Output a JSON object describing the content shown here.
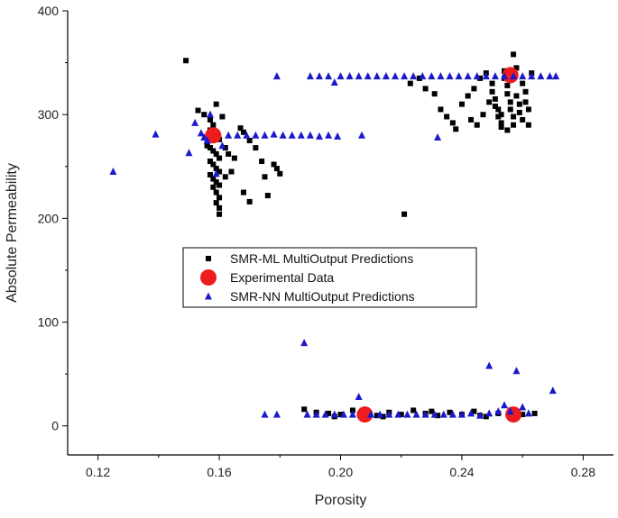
{
  "chart_data": {
    "type": "scatter",
    "title": "",
    "xlabel": "Porosity",
    "ylabel": "Absolute Permeability",
    "xlim": [
      0.11,
      0.29
    ],
    "ylim": [
      -28,
      400
    ],
    "xticks": [
      0.12,
      0.16,
      0.2,
      0.24,
      0.28
    ],
    "xtick_labels": [
      "0.12",
      "0.16",
      "0.20",
      "0.24",
      "0.28"
    ],
    "yticks": [
      0,
      100,
      200,
      300,
      400
    ],
    "ytick_labels": [
      "0",
      "100",
      "200",
      "300",
      "400"
    ],
    "grid": false,
    "legend_position": "center",
    "series": [
      {
        "name": "SMR-ML MultiOutput Predictions",
        "marker": "square",
        "color": "#000000",
        "points": [
          [
            0.149,
            352
          ],
          [
            0.153,
            304
          ],
          [
            0.155,
            300
          ],
          [
            0.157,
            295
          ],
          [
            0.158,
            290
          ],
          [
            0.159,
            310
          ],
          [
            0.157,
            285
          ],
          [
            0.158,
            282
          ],
          [
            0.159,
            278
          ],
          [
            0.16,
            276
          ],
          [
            0.156,
            272
          ],
          [
            0.157,
            268
          ],
          [
            0.158,
            265
          ],
          [
            0.159,
            262
          ],
          [
            0.16,
            258
          ],
          [
            0.157,
            255
          ],
          [
            0.158,
            252
          ],
          [
            0.159,
            248
          ],
          [
            0.16,
            245
          ],
          [
            0.157,
            242
          ],
          [
            0.158,
            238
          ],
          [
            0.159,
            235
          ],
          [
            0.158,
            230
          ],
          [
            0.159,
            225
          ],
          [
            0.16,
            220
          ],
          [
            0.159,
            215
          ],
          [
            0.16,
            210
          ],
          [
            0.16,
            204
          ],
          [
            0.162,
            268
          ],
          [
            0.163,
            262
          ],
          [
            0.165,
            258
          ],
          [
            0.167,
            287
          ],
          [
            0.168,
            283
          ],
          [
            0.17,
            275
          ],
          [
            0.172,
            268
          ],
          [
            0.174,
            255
          ],
          [
            0.175,
            240
          ],
          [
            0.176,
            222
          ],
          [
            0.178,
            252
          ],
          [
            0.179,
            248
          ],
          [
            0.18,
            243
          ],
          [
            0.17,
            216
          ],
          [
            0.168,
            225
          ],
          [
            0.164,
            245
          ],
          [
            0.161,
            298
          ],
          [
            0.156,
            270
          ],
          [
            0.162,
            240
          ],
          [
            0.16,
            232
          ],
          [
            0.221,
            204
          ],
          [
            0.223,
            330
          ],
          [
            0.226,
            335
          ],
          [
            0.228,
            325
          ],
          [
            0.231,
            320
          ],
          [
            0.233,
            305
          ],
          [
            0.235,
            298
          ],
          [
            0.237,
            292
          ],
          [
            0.238,
            286
          ],
          [
            0.24,
            310
          ],
          [
            0.242,
            318
          ],
          [
            0.244,
            325
          ],
          [
            0.246,
            335
          ],
          [
            0.248,
            340
          ],
          [
            0.25,
            330
          ],
          [
            0.25,
            322
          ],
          [
            0.251,
            315
          ],
          [
            0.252,
            305
          ],
          [
            0.252,
            298
          ],
          [
            0.253,
            292
          ],
          [
            0.253,
            288
          ],
          [
            0.254,
            342
          ],
          [
            0.254,
            335
          ],
          [
            0.255,
            328
          ],
          [
            0.255,
            320
          ],
          [
            0.256,
            312
          ],
          [
            0.256,
            305
          ],
          [
            0.257,
            298
          ],
          [
            0.257,
            290
          ],
          [
            0.258,
            345
          ],
          [
            0.258,
            318
          ],
          [
            0.259,
            310
          ],
          [
            0.259,
            302
          ],
          [
            0.26,
            295
          ],
          [
            0.26,
            330
          ],
          [
            0.261,
            322
          ],
          [
            0.261,
            312
          ],
          [
            0.262,
            305
          ],
          [
            0.262,
            290
          ],
          [
            0.263,
            340
          ],
          [
            0.257,
            358
          ],
          [
            0.255,
            285
          ],
          [
            0.253,
            300
          ],
          [
            0.251,
            308
          ],
          [
            0.249,
            312
          ],
          [
            0.247,
            300
          ],
          [
            0.245,
            290
          ],
          [
            0.243,
            295
          ],
          [
            0.188,
            16
          ],
          [
            0.192,
            13
          ],
          [
            0.196,
            12
          ],
          [
            0.2,
            11
          ],
          [
            0.204,
            15
          ],
          [
            0.208,
            12
          ],
          [
            0.212,
            10
          ],
          [
            0.216,
            13
          ],
          [
            0.22,
            11
          ],
          [
            0.224,
            15
          ],
          [
            0.228,
            12
          ],
          [
            0.232,
            10
          ],
          [
            0.236,
            13
          ],
          [
            0.24,
            11
          ],
          [
            0.244,
            14
          ],
          [
            0.248,
            9
          ],
          [
            0.252,
            12
          ],
          [
            0.256,
            15
          ],
          [
            0.26,
            11
          ],
          [
            0.264,
            12
          ],
          [
            0.198,
            9
          ],
          [
            0.214,
            9
          ],
          [
            0.23,
            14
          ],
          [
            0.246,
            10
          ]
        ]
      },
      {
        "name": "Experimental Data",
        "marker": "circle",
        "color": "#ee1c1c",
        "points": [
          [
            0.158,
            280
          ],
          [
            0.256,
            338
          ],
          [
            0.208,
            11
          ],
          [
            0.257,
            11
          ]
        ]
      },
      {
        "name": "SMR-NN MultiOutput Predictions",
        "marker": "triangle",
        "color": "#1a1acc",
        "points": [
          [
            0.125,
            245
          ],
          [
            0.139,
            281
          ],
          [
            0.15,
            263
          ],
          [
            0.152,
            292
          ],
          [
            0.154,
            282
          ],
          [
            0.155,
            278
          ],
          [
            0.156,
            275
          ],
          [
            0.157,
            300
          ],
          [
            0.159,
            243
          ],
          [
            0.161,
            270
          ],
          [
            0.163,
            280
          ],
          [
            0.166,
            280
          ],
          [
            0.169,
            280
          ],
          [
            0.172,
            280
          ],
          [
            0.175,
            280
          ],
          [
            0.178,
            281
          ],
          [
            0.181,
            280
          ],
          [
            0.184,
            280
          ],
          [
            0.187,
            280
          ],
          [
            0.19,
            280
          ],
          [
            0.193,
            279
          ],
          [
            0.196,
            280
          ],
          [
            0.199,
            279
          ],
          [
            0.207,
            280
          ],
          [
            0.179,
            337
          ],
          [
            0.19,
            337
          ],
          [
            0.193,
            337
          ],
          [
            0.196,
            337
          ],
          [
            0.198,
            331
          ],
          [
            0.2,
            337
          ],
          [
            0.203,
            337
          ],
          [
            0.206,
            337
          ],
          [
            0.209,
            337
          ],
          [
            0.212,
            337
          ],
          [
            0.215,
            337
          ],
          [
            0.218,
            337
          ],
          [
            0.221,
            337
          ],
          [
            0.224,
            337
          ],
          [
            0.227,
            337
          ],
          [
            0.23,
            337
          ],
          [
            0.233,
            337
          ],
          [
            0.236,
            337
          ],
          [
            0.239,
            337
          ],
          [
            0.242,
            337
          ],
          [
            0.245,
            337
          ],
          [
            0.248,
            337
          ],
          [
            0.251,
            337
          ],
          [
            0.254,
            337
          ],
          [
            0.257,
            337
          ],
          [
            0.26,
            337
          ],
          [
            0.263,
            337
          ],
          [
            0.266,
            337
          ],
          [
            0.269,
            337
          ],
          [
            0.271,
            337
          ],
          [
            0.232,
            278
          ],
          [
            0.188,
            80
          ],
          [
            0.175,
            11
          ],
          [
            0.179,
            11
          ],
          [
            0.189,
            11
          ],
          [
            0.192,
            11
          ],
          [
            0.195,
            11
          ],
          [
            0.198,
            11
          ],
          [
            0.201,
            11
          ],
          [
            0.204,
            11
          ],
          [
            0.206,
            28
          ],
          [
            0.21,
            11
          ],
          [
            0.213,
            11
          ],
          [
            0.216,
            11
          ],
          [
            0.219,
            11
          ],
          [
            0.222,
            11
          ],
          [
            0.225,
            11
          ],
          [
            0.228,
            11
          ],
          [
            0.231,
            11
          ],
          [
            0.234,
            11
          ],
          [
            0.237,
            11
          ],
          [
            0.24,
            11
          ],
          [
            0.243,
            12
          ],
          [
            0.246,
            10
          ],
          [
            0.249,
            12
          ],
          [
            0.249,
            58
          ],
          [
            0.252,
            14
          ],
          [
            0.254,
            20
          ],
          [
            0.256,
            14
          ],
          [
            0.258,
            53
          ],
          [
            0.26,
            18
          ],
          [
            0.262,
            12
          ],
          [
            0.27,
            34
          ]
        ]
      }
    ]
  }
}
